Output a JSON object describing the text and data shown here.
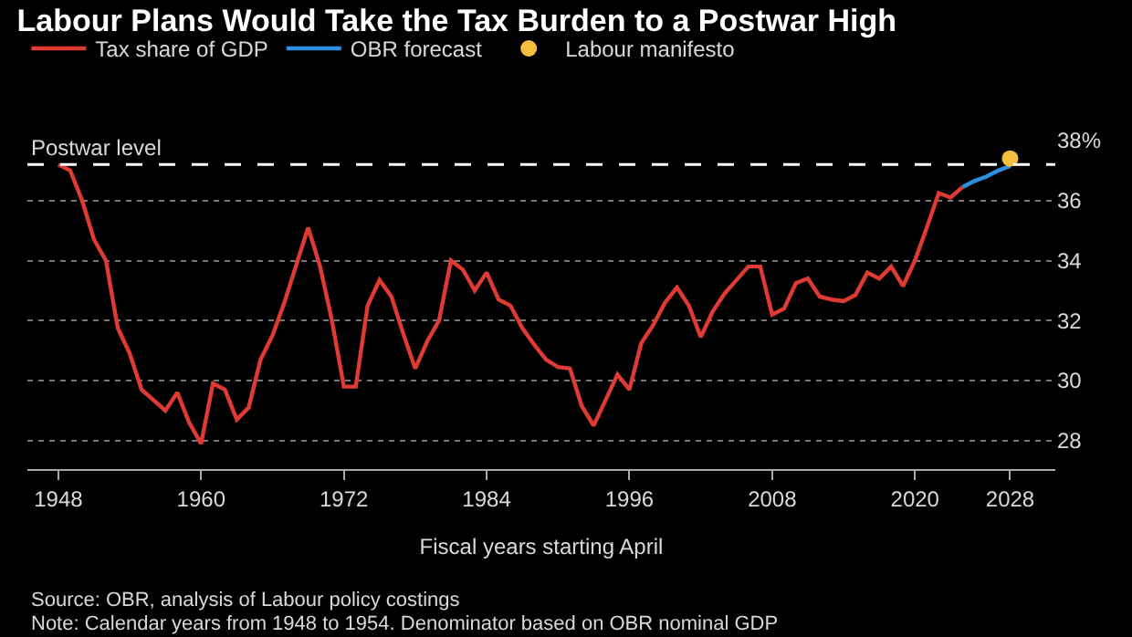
{
  "chart_data": {
    "type": "line",
    "title": "Labour Plans Would Take the Tax Burden to a Postwar High",
    "xlabel": "Fiscal years starting April",
    "x": [
      1948,
      1949,
      1950,
      1951,
      1952,
      1953,
      1954,
      1955,
      1956,
      1957,
      1958,
      1959,
      1960,
      1961,
      1962,
      1963,
      1964,
      1965,
      1966,
      1967,
      1968,
      1969,
      1970,
      1971,
      1972,
      1973,
      1974,
      1975,
      1976,
      1977,
      1978,
      1979,
      1980,
      1981,
      1982,
      1983,
      1984,
      1985,
      1986,
      1987,
      1988,
      1989,
      1990,
      1991,
      1992,
      1993,
      1994,
      1995,
      1996,
      1997,
      1998,
      1999,
      2000,
      2001,
      2002,
      2003,
      2004,
      2005,
      2006,
      2007,
      2008,
      2009,
      2010,
      2011,
      2012,
      2013,
      2014,
      2015,
      2016,
      2017,
      2018,
      2019,
      2020,
      2021,
      2022,
      2023,
      2024
    ],
    "series": [
      {
        "name": "Tax share of GDP",
        "color": "#e03a34",
        "values": [
          37.2,
          37.0,
          36.0,
          34.7,
          34.0,
          31.75,
          30.9,
          29.7,
          29.35,
          29.0,
          29.6,
          28.6,
          27.9,
          29.9,
          29.7,
          28.7,
          29.1,
          30.7,
          31.5,
          32.6,
          33.85,
          35.1,
          33.8,
          32.0,
          29.8,
          29.8,
          32.5,
          33.35,
          32.8,
          31.55,
          30.4,
          31.3,
          32.0,
          34.0,
          33.7,
          33.0,
          33.6,
          32.7,
          32.5,
          31.75,
          31.2,
          30.7,
          30.45,
          30.4,
          29.15,
          28.5,
          29.35,
          30.2,
          29.7,
          31.25,
          31.85,
          32.6,
          33.1,
          32.5,
          31.45,
          32.3,
          32.9,
          33.35,
          33.8,
          33.8,
          32.2,
          32.4,
          33.25,
          33.4,
          32.8,
          32.7,
          32.65,
          32.85,
          33.6,
          33.4,
          33.8,
          33.15,
          34.0,
          35.1,
          36.25,
          36.1,
          36.45
        ]
      },
      {
        "name": "OBR forecast",
        "color": "#2d8fdd",
        "x": [
          2024,
          2025,
          2026,
          2027,
          2028
        ],
        "values": [
          36.45,
          36.65,
          36.8,
          37.0,
          37.15
        ]
      },
      {
        "name": "Labour manifesto",
        "color": "#f5bf3d",
        "type": "scatter",
        "marker": "circle",
        "x": [
          2028
        ],
        "values": [
          37.4
        ]
      }
    ],
    "xlim": [
      1945.4,
      2031.8
    ],
    "xticks": [
      1948,
      1960,
      1972,
      1984,
      1996,
      2008,
      2020,
      2028
    ],
    "ylim": [
      27.05,
      38
    ],
    "yticks": [
      28,
      30,
      32,
      34,
      36,
      {
        "value": 38,
        "label": "38%"
      }
    ],
    "grid": "y",
    "legend": "top left",
    "line_style": "solid",
    "ref_lines": [
      {
        "axis": "y",
        "value": 37.2,
        "label": "Postwar level",
        "color": "#ffffff",
        "line_style": "dashed"
      }
    ],
    "annotations": [
      "Source: OBR, analysis of Labour policy costings",
      "Note: Calendar years from 1948 to 1954. Denominator based on OBR nominal GDP"
    ]
  }
}
